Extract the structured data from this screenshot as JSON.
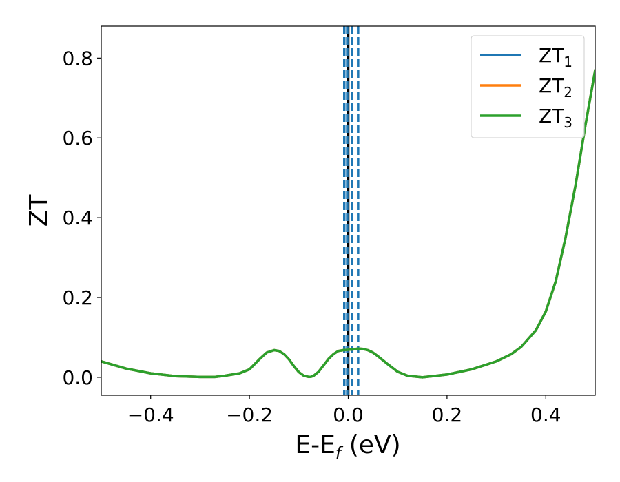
{
  "chart_data": {
    "type": "line",
    "xlabel": {
      "base": "E-E",
      "sub": "f",
      "unit": " (eV)"
    },
    "ylabel": "ZT",
    "xlim": [
      -0.5,
      0.5
    ],
    "ylim": [
      -0.045,
      0.88
    ],
    "xticks": [
      -0.4,
      -0.2,
      0.0,
      0.2,
      0.4
    ],
    "xtick_labels": [
      "−0.4",
      "−0.2",
      "0.0",
      "0.2",
      "0.4"
    ],
    "yticks": [
      0.0,
      0.2,
      0.4,
      0.6,
      0.8
    ],
    "ytick_labels": [
      "0.0",
      "0.2",
      "0.4",
      "0.6",
      "0.8"
    ],
    "legend_position": "top-right",
    "series": [
      {
        "name": "ZT",
        "sub": "1",
        "color": "#1f77b4"
      },
      {
        "name": "ZT",
        "sub": "2",
        "color": "#ff7f0e"
      },
      {
        "name": "ZT",
        "sub": "3",
        "color": "#2ca02c"
      }
    ],
    "curve_x": [
      -0.5,
      -0.45,
      -0.4,
      -0.35,
      -0.3,
      -0.27,
      -0.25,
      -0.22,
      -0.2,
      -0.18,
      -0.165,
      -0.15,
      -0.14,
      -0.13,
      -0.12,
      -0.11,
      -0.1,
      -0.09,
      -0.08,
      -0.075,
      -0.07,
      -0.06,
      -0.05,
      -0.04,
      -0.03,
      -0.02,
      -0.01,
      0.0,
      0.01,
      0.02,
      0.03,
      0.04,
      0.05,
      0.06,
      0.08,
      0.1,
      0.12,
      0.15,
      0.2,
      0.25,
      0.3,
      0.33,
      0.35,
      0.38,
      0.4,
      0.42,
      0.44,
      0.46,
      0.48,
      0.5
    ],
    "curve_y": [
      0.04,
      0.022,
      0.01,
      0.003,
      0.001,
      0.001,
      0.004,
      0.01,
      0.02,
      0.045,
      0.062,
      0.068,
      0.066,
      0.058,
      0.045,
      0.028,
      0.013,
      0.004,
      0.001,
      0.0015,
      0.004,
      0.014,
      0.03,
      0.046,
      0.058,
      0.066,
      0.068,
      0.069,
      0.07,
      0.072,
      0.071,
      0.068,
      0.062,
      0.053,
      0.033,
      0.014,
      0.004,
      0.0,
      0.007,
      0.02,
      0.04,
      0.058,
      0.076,
      0.118,
      0.165,
      0.24,
      0.35,
      0.48,
      0.63,
      0.77
    ],
    "vertical_lines": [
      {
        "x": 0.0,
        "style": "solid",
        "color": "#000000"
      },
      {
        "x": -0.008,
        "style": "dashed",
        "color": "#1f77b4"
      },
      {
        "x": -0.002,
        "style": "dashed",
        "color": "#1f77b4"
      },
      {
        "x": 0.008,
        "style": "dashed",
        "color": "#1f77b4"
      },
      {
        "x": 0.02,
        "style": "dashed",
        "color": "#1f77b4"
      }
    ]
  }
}
